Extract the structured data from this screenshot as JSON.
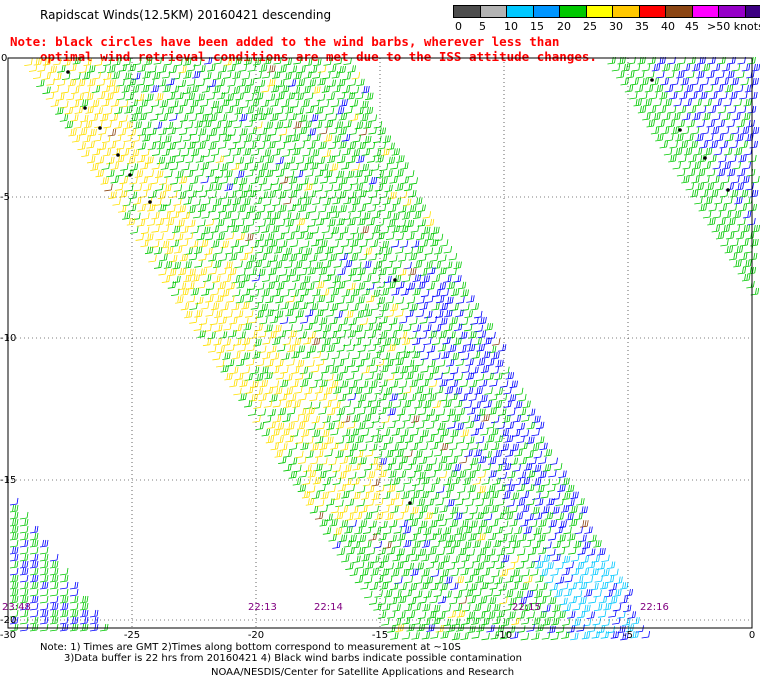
{
  "title": "Rapidscat Winds(12.5KM) 20160421 descending",
  "note_line1": "Note: black circles have been added to the wind barbs, wherever less than",
  "note_line2": "optimal wind retrieval conditions are met due to the ISS attitude changes.",
  "legend": {
    "labels": [
      "0",
      "5",
      "10",
      "15",
      "20",
      "25",
      "30",
      "35",
      "40",
      "45",
      ">50 knots"
    ],
    "colors": [
      "#4d4d4d",
      "#b3b3b3",
      "#00c8ff",
      "#0096ff",
      "#00c800",
      "#ffff00",
      "#ffc800",
      "#ff0000",
      "#8b4513",
      "#ff00ff",
      "#9600c8",
      "#3c0082"
    ]
  },
  "axes": {
    "lon_labels": [
      "-30",
      "-25",
      "-20",
      "-15",
      "-10",
      "-5",
      "0"
    ],
    "lat_labels": [
      "0",
      "-5",
      "-10",
      "-15",
      "-20"
    ]
  },
  "pass_times": [
    "23:48",
    "22:13",
    "22:14",
    "22:15",
    "22:16"
  ],
  "footer": {
    "line1": "Note: 1) Times are GMT 2)Times along bottom correspond to measurement at ~10S",
    "line2": "3)Data buffer is 22 hrs from 20160421 4) Black wind barbs indicate possible contamination",
    "line3": "NOAA/NESDIS/Center for Satellite Applications and Research"
  }
}
